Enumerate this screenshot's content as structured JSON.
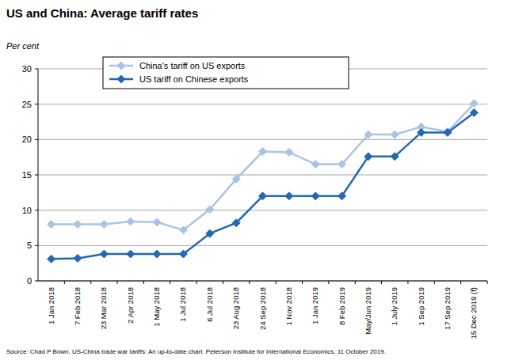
{
  "chart_data": {
    "type": "line",
    "title": "US and China: Average tariff rates",
    "y_label": "Per cent",
    "source": "Source: Chad P Bown, US-China trade war tariffs: An up-to-date chart.  Peterson Institute for International Economics, 11 October 2019.",
    "categories": [
      "1 Jan 2018",
      "7 Feb 2018",
      "23 Mar 2018",
      "2 Apr 2018",
      "1 May 2018",
      "1 Jul 2018",
      "6 Jul 2018",
      "23 Aug 2018",
      "24 Sep 2018",
      "1 Nov 2018",
      "1 Jan 2019",
      "8 Feb 2019",
      "May/Jun 2019",
      "1 July 2019",
      "1 Sep 2019",
      "17 Sep 2019",
      "15 Dec 2019 (f)"
    ],
    "series": [
      {
        "name": "China's tariff on US exports",
        "color": "#a9c3e6",
        "marker": "diamond",
        "values": [
          8.0,
          8.0,
          8.0,
          8.4,
          8.3,
          7.2,
          10.1,
          14.4,
          18.3,
          18.2,
          16.5,
          16.5,
          20.7,
          20.7,
          21.8,
          21.1,
          25.1
        ]
      },
      {
        "name": "US tariff on Chinese exports",
        "color": "#2467b3",
        "marker": "diamond",
        "values": [
          3.1,
          3.2,
          3.8,
          3.8,
          3.8,
          3.8,
          6.7,
          8.2,
          12.0,
          12.0,
          12.0,
          12.0,
          17.6,
          17.6,
          21.0,
          21.0,
          23.8
        ]
      }
    ],
    "ylim": [
      0,
      30
    ],
    "yticks": [
      0,
      5,
      10,
      15,
      20,
      25,
      30
    ],
    "grid": true,
    "legend": "top"
  }
}
